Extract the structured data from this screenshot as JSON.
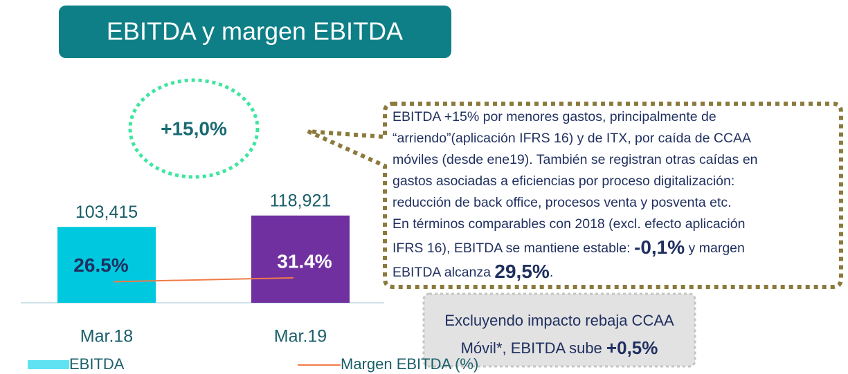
{
  "title": "EBITDA y margen EBITDA",
  "badge": "+15,0%",
  "callout": [
    [
      {
        "text": "EBITDA +15% por menores gastos, principalmente de",
        "bold": false
      }
    ],
    [
      {
        "text": "“arriendo”(aplicación IFRS 16) y de ITX, por caída de CCAA",
        "bold": false
      }
    ],
    [
      {
        "text": "móviles (desde ene19). También se registran otras caídas en",
        "bold": false
      }
    ],
    [
      {
        "text": "gastos asociadas a eficiencias por proceso digitalización:",
        "bold": false
      }
    ],
    [
      {
        "text": "reducción de back office, procesos venta y posventa etc.",
        "bold": false
      }
    ],
    [
      {
        "text": "En términos comparables con 2018 (excl. efecto aplicación",
        "bold": false
      }
    ],
    [
      {
        "text": "IFRS 16), EBITDA se mantiene estable: ",
        "bold": false
      },
      {
        "text": "-0,1%",
        "bold": true
      },
      {
        "text": " y margen",
        "bold": false
      }
    ],
    [
      {
        "text": "EBITDA alcanza ",
        "bold": false
      },
      {
        "text": "29,5%",
        "bold": true
      },
      {
        "text": ".",
        "bold": false
      }
    ]
  ],
  "note": [
    [
      {
        "text": "Excluyendo impacto rebaja CCAA",
        "bold": false
      }
    ],
    [
      {
        "text": "Móvil*, EBITDA sube ",
        "bold": false
      },
      {
        "text": "+0,5%",
        "bold": true
      }
    ]
  ],
  "chart_data": {
    "type": "bar",
    "categories": [
      "Mar.18",
      "Mar.19"
    ],
    "ylim": [
      0,
      130000
    ],
    "y2lim": [
      0,
      120
    ],
    "series": [
      {
        "name": "EBITDA",
        "color": "#5fe3f2",
        "colors": [
          "#00c8df",
          "#7030a0"
        ],
        "values": [
          103415,
          118921
        ],
        "value_labels": [
          "103,415",
          "118,921"
        ]
      },
      {
        "name": "Margen EBITDA (%)",
        "type": "line",
        "axis": "y2",
        "color": "#f07a45",
        "values": [
          26.5,
          31.4
        ],
        "value_labels": [
          "26.5%",
          "31.4%"
        ]
      }
    ]
  }
}
